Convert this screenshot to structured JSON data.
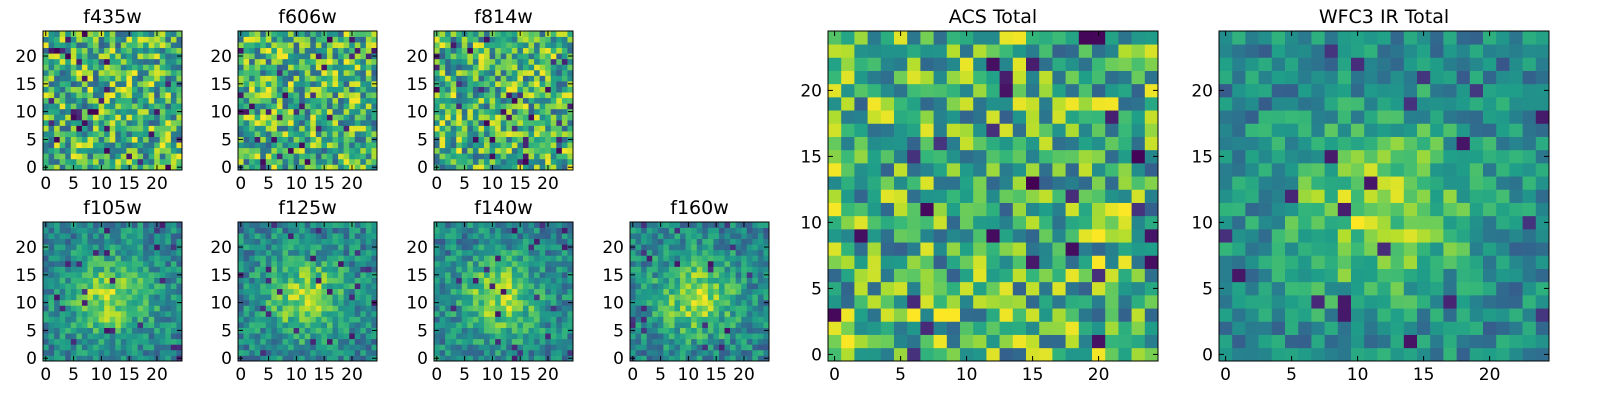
{
  "figure": {
    "colormap": "viridis"
  },
  "chart_data": [
    {
      "type": "heatmap",
      "title": "f435w",
      "grid_size": 25,
      "xticks": [
        0,
        5,
        10,
        15,
        20
      ],
      "yticks": [
        0,
        5,
        10,
        15,
        20
      ],
      "xlim": [
        0,
        25
      ],
      "ylim": [
        0,
        25
      ],
      "pattern": "noise",
      "seed": 11
    },
    {
      "type": "heatmap",
      "title": "f606w",
      "grid_size": 25,
      "xticks": [
        0,
        5,
        10,
        15,
        20
      ],
      "yticks": [
        0,
        5,
        10,
        15,
        20
      ],
      "xlim": [
        0,
        25
      ],
      "ylim": [
        0,
        25
      ],
      "pattern": "noise",
      "seed": 23
    },
    {
      "type": "heatmap",
      "title": "f814w",
      "grid_size": 25,
      "xticks": [
        0,
        5,
        10,
        15,
        20
      ],
      "yticks": [
        0,
        5,
        10,
        15,
        20
      ],
      "xlim": [
        0,
        25
      ],
      "ylim": [
        0,
        25
      ],
      "pattern": "noise",
      "seed": 37
    },
    {
      "type": "heatmap",
      "title": "f105w",
      "grid_size": 25,
      "xticks": [
        0,
        5,
        10,
        15,
        20
      ],
      "yticks": [
        0,
        5,
        10,
        15,
        20
      ],
      "xlim": [
        0,
        25
      ],
      "ylim": [
        0,
        25
      ],
      "pattern": "blob",
      "seed": 41
    },
    {
      "type": "heatmap",
      "title": "f125w",
      "grid_size": 25,
      "xticks": [
        0,
        5,
        10,
        15,
        20
      ],
      "yticks": [
        0,
        5,
        10,
        15,
        20
      ],
      "xlim": [
        0,
        25
      ],
      "ylim": [
        0,
        25
      ],
      "pattern": "blob",
      "seed": 53
    },
    {
      "type": "heatmap",
      "title": "f140w",
      "grid_size": 25,
      "xticks": [
        0,
        5,
        10,
        15,
        20
      ],
      "yticks": [
        0,
        5,
        10,
        15,
        20
      ],
      "xlim": [
        0,
        25
      ],
      "ylim": [
        0,
        25
      ],
      "pattern": "blob",
      "seed": 67
    },
    {
      "type": "heatmap",
      "title": "f160w",
      "grid_size": 25,
      "xticks": [
        0,
        5,
        10,
        15,
        20
      ],
      "yticks": [
        0,
        5,
        10,
        15,
        20
      ],
      "xlim": [
        0,
        25
      ],
      "ylim": [
        0,
        25
      ],
      "pattern": "blob",
      "seed": 79
    },
    {
      "type": "heatmap",
      "title": "ACS Total",
      "grid_size": 25,
      "xticks": [
        0,
        5,
        10,
        15,
        20
      ],
      "yticks": [
        0,
        5,
        10,
        15,
        20
      ],
      "xlim": [
        0,
        25
      ],
      "ylim": [
        0,
        25
      ],
      "pattern": "noise",
      "seed": 97
    },
    {
      "type": "heatmap",
      "title": "WFC3 IR Total",
      "grid_size": 25,
      "xticks": [
        0,
        5,
        10,
        15,
        20
      ],
      "yticks": [
        0,
        5,
        10,
        15,
        20
      ],
      "xlim": [
        0,
        25
      ],
      "ylim": [
        0,
        25
      ],
      "pattern": "blob",
      "seed": 113
    }
  ]
}
